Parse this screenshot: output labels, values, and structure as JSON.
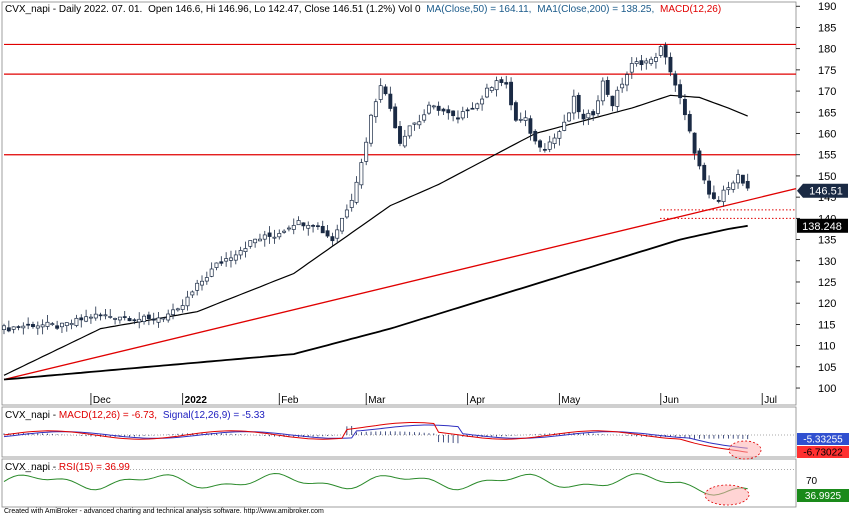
{
  "chart_data": [
    {
      "type": "candlestick",
      "pane": "price",
      "title": "CVX_napi - Daily 2022. 07. 01.",
      "ohlc_text": "Open 146.6, Hi 146.96, Lo 142.47, Close 146.51 (1.2%) Vol 0",
      "ma50_text": "MA(Close,50) = 164.11,",
      "ma200_text": "MA1(Close,200) = 138.25,",
      "macd_cut_text": "MACD(12,26)",
      "last_close_label": "146.51",
      "ma200_label": "138.248",
      "ylim": [
        96,
        191
      ],
      "yticks": [
        100,
        105,
        110,
        115,
        120,
        125,
        130,
        135,
        140,
        145,
        150,
        155,
        160,
        165,
        170,
        175,
        180,
        185,
        190
      ],
      "ytick_labels": [
        "100",
        "105",
        "110",
        "115",
        "120",
        "125",
        "130",
        "135",
        "140",
        "145",
        "150",
        "155",
        "160",
        "165",
        "170",
        "175",
        "180",
        "185",
        "190"
      ],
      "xtick_labels": [
        {
          "label": "Dec",
          "day": 18
        },
        {
          "label": "2022",
          "day": 37
        },
        {
          "label": "Feb",
          "day": 57
        },
        {
          "label": "Mar",
          "day": 75
        },
        {
          "label": "Apr",
          "day": 96
        },
        {
          "label": "May",
          "day": 115
        },
        {
          "label": "Jun",
          "day": 136
        },
        {
          "label": "Jul",
          "day": 157
        }
      ],
      "horizontal_resistance": [
        181,
        174,
        155
      ],
      "close_anchors": [
        [
          0,
          114
        ],
        [
          6,
          115
        ],
        [
          12,
          114.5
        ],
        [
          18,
          117
        ],
        [
          24,
          117
        ],
        [
          30,
          116
        ],
        [
          36,
          118
        ],
        [
          40,
          124
        ],
        [
          44,
          129
        ],
        [
          48,
          132
        ],
        [
          52,
          135
        ],
        [
          56,
          136
        ],
        [
          60,
          139
        ],
        [
          64,
          139
        ],
        [
          68,
          135
        ],
        [
          72,
          145
        ],
        [
          74,
          153
        ],
        [
          76,
          164
        ],
        [
          78,
          172
        ],
        [
          80,
          166
        ],
        [
          82,
          158
        ],
        [
          84,
          162
        ],
        [
          86,
          163
        ],
        [
          88,
          166
        ],
        [
          90,
          166
        ],
        [
          94,
          163
        ],
        [
          96,
          166
        ],
        [
          98,
          167
        ],
        [
          100,
          170
        ],
        [
          102,
          173
        ],
        [
          104,
          171
        ],
        [
          106,
          163
        ],
        [
          108,
          163
        ],
        [
          110,
          158
        ],
        [
          112,
          157
        ],
        [
          114,
          159
        ],
        [
          116,
          162
        ],
        [
          118,
          168
        ],
        [
          120,
          163
        ],
        [
          122,
          165
        ],
        [
          124,
          172
        ],
        [
          126,
          167
        ],
        [
          128,
          172
        ],
        [
          130,
          176
        ],
        [
          132,
          177
        ],
        [
          134,
          177
        ],
        [
          136,
          180
        ],
        [
          138,
          175
        ],
        [
          140,
          168
        ],
        [
          142,
          160
        ],
        [
          144,
          152
        ],
        [
          146,
          145
        ],
        [
          148,
          144
        ],
        [
          150,
          148
        ],
        [
          152,
          150
        ],
        [
          154,
          146.5
        ]
      ],
      "ma50_anchors": [
        [
          0,
          103
        ],
        [
          20,
          114
        ],
        [
          40,
          118
        ],
        [
          60,
          127
        ],
        [
          70,
          135
        ],
        [
          80,
          143
        ],
        [
          90,
          148
        ],
        [
          100,
          154
        ],
        [
          110,
          160
        ],
        [
          120,
          163
        ],
        [
          130,
          166
        ],
        [
          138,
          169
        ],
        [
          144,
          168.5
        ],
        [
          150,
          166
        ],
        [
          154,
          164.1
        ]
      ],
      "ma200_anchors": [
        [
          0,
          102
        ],
        [
          40,
          106
        ],
        [
          60,
          108
        ],
        [
          80,
          114
        ],
        [
          100,
          121
        ],
        [
          120,
          128
        ],
        [
          140,
          135
        ],
        [
          150,
          137.5
        ],
        [
          154,
          138.25
        ]
      ],
      "trendline_points": [
        [
          0,
          102
        ],
        [
          164,
          147
        ]
      ],
      "support_dotted": [
        [
          143.5,
          142
        ],
        [
          141,
          140
        ]
      ],
      "x_range": [
        0,
        164
      ]
    },
    {
      "type": "line",
      "pane": "macd",
      "label_name": "CVX_napi - ",
      "macd_text": "MACD(12,26) = -6.73,",
      "signal_text": "Signal(12,26,9) = -5.33",
      "signal_value_label": "-5.33255",
      "macd_value_label": "-6.73022",
      "zero_line": 0,
      "ylim": [
        -9,
        9
      ]
    },
    {
      "type": "line",
      "pane": "rsi",
      "label_name": "CVX_napi - ",
      "rsi_text": "RSI(15) = 36.99",
      "value_label": "36.9925",
      "ylim": [
        15,
        85
      ],
      "yticks": [
        70
      ],
      "ytick_labels": [
        "70"
      ]
    }
  ],
  "footer_text": "Created with AmiBroker - advanced charting and technical analysis software. http://www.amibroker.com",
  "colors": {
    "up_candle": "#ffffff",
    "down_candle": "#1a2a44",
    "candle_outline": "#1a2a44",
    "ma50": "#000000",
    "ma200": "#000000",
    "resistance": "#e00000",
    "trendline": "#e00000",
    "macd_line": "#e00000",
    "signal_line": "#3030c0",
    "rsi_line": "#2a8a2a",
    "label_bg_dark": "#1a2a44",
    "macd_label_bg": "#ff3030",
    "signal_label_bg": "#3050d0",
    "rsi_label_bg": "#1a8a1a",
    "ellipse_fill": "#ffb0b0",
    "ma50_text": "#1a5a8a",
    "ma200_text": "#1a5a8a",
    "macd_cut_text": "#e00000",
    "macd_title_text": "#e00000",
    "signal_title_text": "#2020c0",
    "rsi_title_text": "#e00000"
  }
}
